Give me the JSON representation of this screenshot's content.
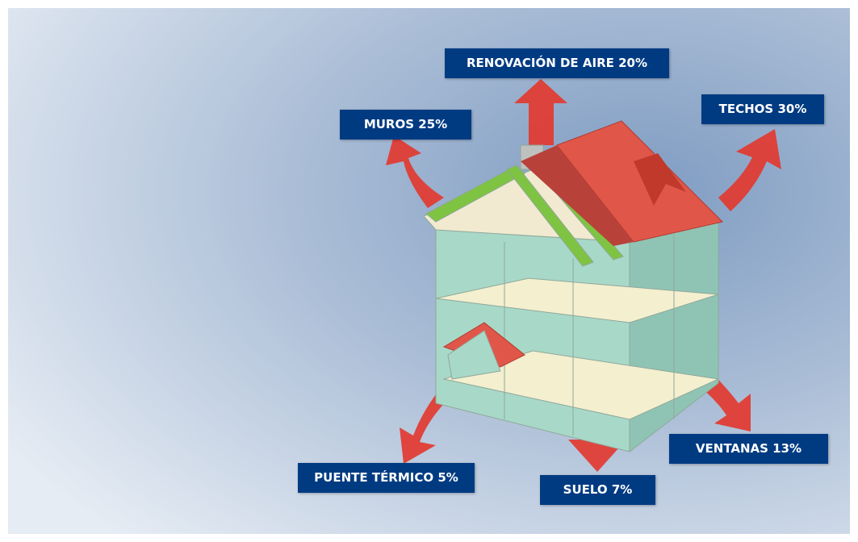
{
  "labels": {
    "air": "RENOVACIÓN DE AIRE 20%",
    "walls": "MUROS 25%",
    "roofs": "TECHOS 30%",
    "bridge": "PUENTE TÉRMICO 5%",
    "floor": "SUELO 7%",
    "windows": "VENTANAS 13%"
  }
}
